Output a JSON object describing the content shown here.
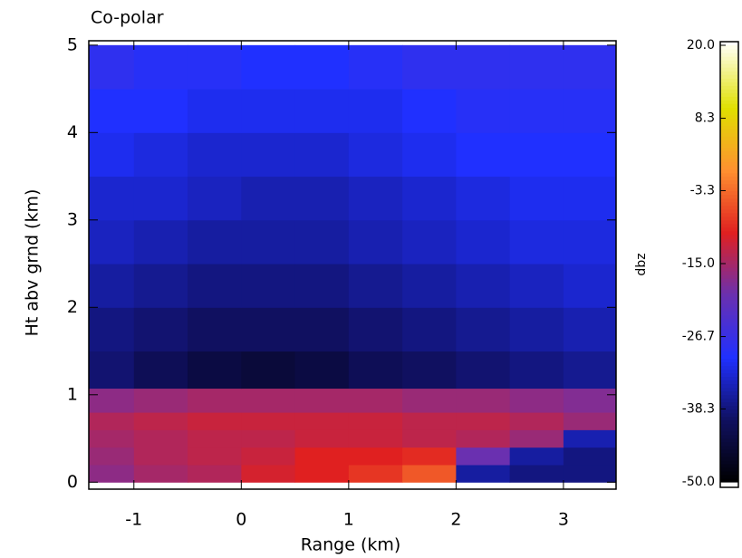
{
  "chart_data": {
    "type": "heatmap",
    "title": "Co-polar",
    "x_label": "Range (km)",
    "y_label": "Ht abv grnd (km)",
    "z_label": "dbz",
    "x": [
      -1.25,
      -0.75,
      -0.25,
      0.25,
      0.75,
      1.25,
      1.75,
      2.25,
      2.75,
      3.25
    ],
    "y": [
      0.1,
      0.3,
      0.5,
      0.7,
      0.9,
      1.25,
      1.75,
      2.25,
      2.75,
      3.25,
      3.75,
      4.25,
      4.75
    ],
    "z": [
      [
        -17,
        -15,
        -14,
        -11,
        -10,
        -8,
        -5,
        -36,
        -38,
        -38
      ],
      [
        -16,
        -14,
        -13,
        -12,
        -10,
        -10,
        -9,
        -20,
        -36,
        -38
      ],
      [
        -15,
        -14,
        -13,
        -13,
        -12,
        -12,
        -13,
        -14,
        -16,
        -35
      ],
      [
        -14,
        -13,
        -12,
        -12,
        -12,
        -12,
        -13,
        -13,
        -14,
        -16
      ],
      [
        -17,
        -16,
        -15,
        -15,
        -15,
        -15,
        -16,
        -16,
        -17,
        -18
      ],
      [
        -39,
        -41,
        -43,
        -44,
        -43,
        -41,
        -40,
        -39,
        -38,
        -37
      ],
      [
        -38,
        -39,
        -40,
        -40,
        -40,
        -39,
        -38,
        -37,
        -36,
        -35
      ],
      [
        -36,
        -37,
        -38,
        -38,
        -38,
        -37,
        -36,
        -35,
        -34,
        -33
      ],
      [
        -34,
        -35,
        -36,
        -36,
        -36,
        -35,
        -34,
        -33,
        -32,
        -32
      ],
      [
        -33,
        -33,
        -34,
        -35,
        -35,
        -34,
        -33,
        -32,
        -31,
        -31
      ],
      [
        -31,
        -32,
        -33,
        -33,
        -33,
        -32,
        -31,
        -30,
        -30,
        -30
      ],
      [
        -30,
        -30,
        -31,
        -31,
        -31,
        -31,
        -30,
        -29,
        -29,
        -29
      ],
      [
        -28,
        -29,
        -29,
        -30,
        -30,
        -29,
        -28,
        -28,
        -28,
        -28
      ]
    ],
    "xlim": [
      -1.42,
      3.49
    ],
    "xticks": [
      -1,
      0,
      1,
      2,
      3
    ],
    "ylim": [
      -0.08,
      5.05
    ],
    "yticks": [
      0,
      1,
      2,
      3,
      4,
      5
    ],
    "zlim": [
      -50,
      20
    ],
    "zticks": [
      {
        "value": -50,
        "label": "-50.0"
      },
      -38.3,
      -26.7,
      {
        "value": -15,
        "label": "-15.0"
      },
      -3.3,
      8.3,
      {
        "value": 20,
        "label": "20.0"
      }
    ],
    "colormap": [
      "#000000",
      "#101060",
      "#2030ff",
      "#6a30b0",
      "#e02020",
      "#ff9030",
      "#e0e000",
      "#fffff0"
    ]
  }
}
